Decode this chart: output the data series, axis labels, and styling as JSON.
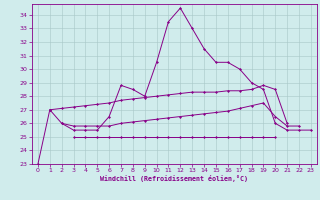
{
  "color": "#880088",
  "bgcolor": "#d0ecec",
  "xlabel": "Windchill (Refroidissement éolien,°C)",
  "ylim": [
    23,
    34.8
  ],
  "xlim": [
    -0.5,
    23.5
  ],
  "yticks": [
    23,
    24,
    25,
    26,
    27,
    28,
    29,
    30,
    31,
    32,
    33,
    34
  ],
  "xticks": [
    0,
    1,
    2,
    3,
    4,
    5,
    6,
    7,
    8,
    9,
    10,
    11,
    12,
    13,
    14,
    15,
    16,
    17,
    18,
    19,
    20,
    21,
    22,
    23
  ],
  "y_main": [
    23,
    27,
    26,
    25.5,
    25.5,
    25.5,
    26.5,
    28.8,
    28.5,
    28.0,
    30.5,
    33.5,
    34.5,
    33.0,
    31.5,
    30.5,
    30.5,
    30.0,
    29.0,
    28.5,
    26.0,
    25.5,
    25.5,
    25.5
  ],
  "y_upper": [
    null,
    27.0,
    27.1,
    27.2,
    27.3,
    27.4,
    27.5,
    27.7,
    27.8,
    27.9,
    28.0,
    28.1,
    28.2,
    28.3,
    28.3,
    28.3,
    28.4,
    28.4,
    28.5,
    28.8,
    28.5,
    26.0,
    null,
    null
  ],
  "y_mid": [
    null,
    null,
    26.0,
    25.8,
    25.8,
    25.8,
    25.8,
    26.0,
    26.1,
    26.2,
    26.3,
    26.4,
    26.5,
    26.6,
    26.7,
    26.8,
    26.9,
    27.1,
    27.3,
    27.5,
    26.5,
    25.8,
    25.8,
    null
  ],
  "y_low": [
    null,
    null,
    null,
    25.0,
    25.0,
    25.0,
    25.0,
    25.0,
    25.0,
    25.0,
    25.0,
    25.0,
    25.0,
    25.0,
    25.0,
    25.0,
    25.0,
    25.0,
    25.0,
    25.0,
    25.0,
    null,
    null,
    null
  ]
}
